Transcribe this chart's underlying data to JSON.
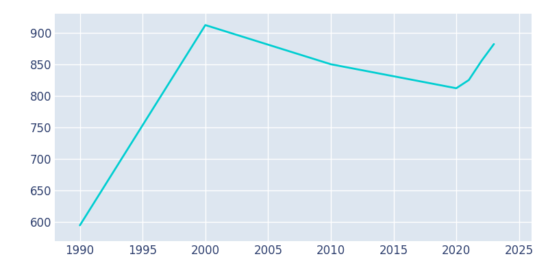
{
  "years": [
    1990,
    2000,
    2010,
    2020,
    2021,
    2022,
    2023
  ],
  "population": [
    595,
    912,
    850,
    812,
    825,
    855,
    882
  ],
  "line_color": "#00CED1",
  "bg_color": "#dde6f0",
  "outer_bg": "#ffffff",
  "xlim": [
    1988,
    2026
  ],
  "ylim": [
    570,
    930
  ],
  "xticks": [
    1990,
    1995,
    2000,
    2005,
    2010,
    2015,
    2020,
    2025
  ],
  "yticks": [
    600,
    650,
    700,
    750,
    800,
    850,
    900
  ],
  "grid_color": "#ffffff",
  "tick_color": "#2e3f6e",
  "linewidth": 2.0,
  "tick_fontsize": 12
}
